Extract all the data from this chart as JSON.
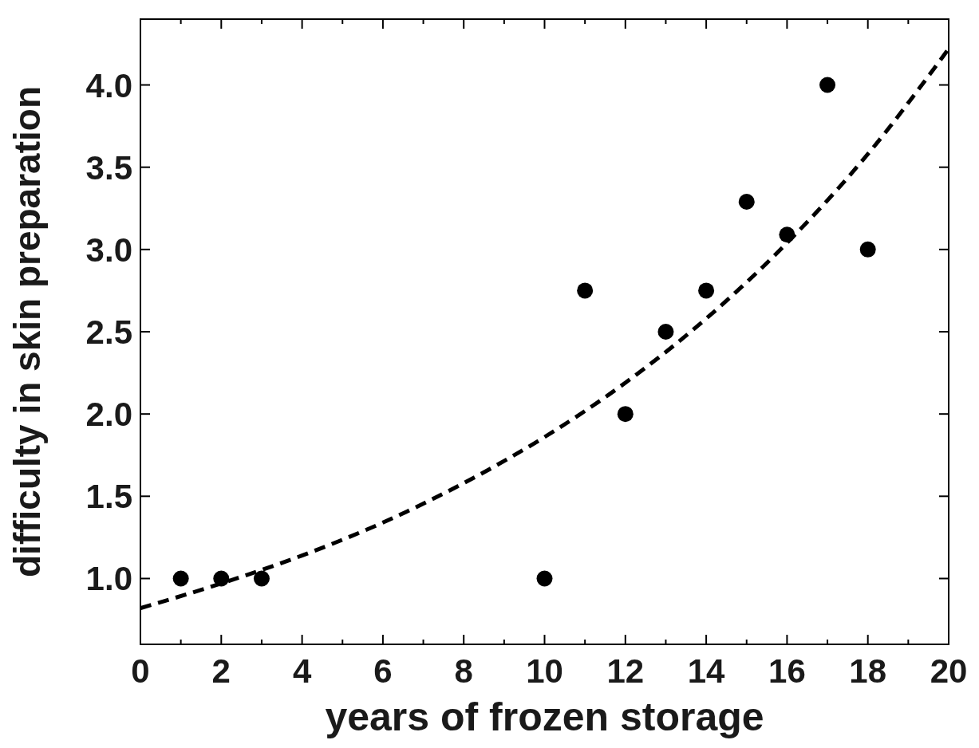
{
  "chart_data": {
    "type": "scatter",
    "xlabel": "years of frozen storage",
    "ylabel": "difficulty in skin preparation",
    "xlim": [
      0,
      20
    ],
    "ylim": [
      0.6,
      4.4
    ],
    "xticks": [
      0,
      {
        "value": 1,
        "label": null
      },
      2,
      {
        "value": 3,
        "label": null
      },
      4,
      {
        "value": 5,
        "label": null
      },
      6,
      {
        "value": 7,
        "label": null
      },
      8,
      {
        "value": 9,
        "label": null
      },
      10,
      {
        "value": 11,
        "label": null
      },
      12,
      {
        "value": 13,
        "label": null
      },
      14,
      {
        "value": 15,
        "label": null
      },
      16,
      {
        "value": 17,
        "label": null
      },
      18,
      {
        "value": 19,
        "label": null
      },
      20
    ],
    "yticks": [
      {
        "value": 1,
        "label": "1.0"
      },
      1.5,
      {
        "value": 2,
        "label": "2.0"
      },
      2.5,
      {
        "value": 3,
        "label": "3.0"
      },
      3.5,
      {
        "value": 4,
        "label": "4.0"
      }
    ],
    "grid": false,
    "marker": "circle",
    "series": [
      {
        "color": "#000000",
        "x": [
          1,
          2,
          3,
          10,
          11,
          12,
          13,
          14,
          15,
          16,
          17,
          18
        ],
        "values": [
          1,
          1,
          1,
          1,
          2.75,
          2,
          2.5,
          2.75,
          3.29,
          3.09,
          4,
          3
        ]
      },
      {
        "type": "line",
        "color": "#000000",
        "line_style": "dashed",
        "marker": "none",
        "x": [
          0,
          2,
          4,
          6,
          8,
          10,
          12,
          14,
          16,
          18,
          20
        ],
        "values": [
          0.82,
          0.97,
          1.14,
          1.34,
          1.58,
          1.86,
          2.19,
          2.58,
          3.04,
          3.58,
          4.22
        ]
      }
    ]
  }
}
